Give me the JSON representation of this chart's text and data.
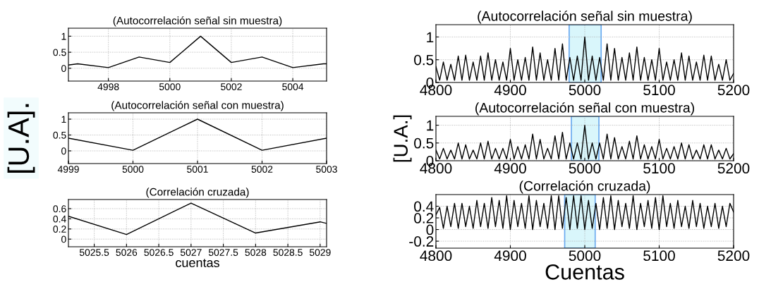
{
  "chart_data": [
    {
      "type": "line",
      "title": "(Autocorrelación señal sin muestra)",
      "x": [
        4996.7,
        4997,
        4998,
        4999,
        5000,
        5001,
        5002,
        5003,
        5004,
        5005,
        5005.1
      ],
      "series": [
        {
          "color": "#000000",
          "values": [
            0.1,
            0.14,
            0.02,
            0.35,
            0.18,
            1.0,
            0.18,
            0.35,
            0.02,
            0.14,
            0.14
          ]
        }
      ],
      "xlim": [
        4996.7,
        5005.1
      ],
      "xticks": [
        4998,
        5000,
        5002,
        5004
      ],
      "ylim": [
        -0.4,
        1.25
      ],
      "yticks": [
        0,
        0.5,
        1
      ],
      "grid": true
    },
    {
      "type": "line",
      "title": "(Autocorrelación señal sin muestra)",
      "x": [
        4800,
        4805,
        4810,
        4815,
        4820,
        4825,
        4830,
        4835,
        4840,
        4845,
        4850,
        4855,
        4860,
        4865,
        4870,
        4875,
        4880,
        4885,
        4890,
        4895,
        4900,
        4905,
        4910,
        4915,
        4920,
        4925,
        4930,
        4935,
        4940,
        4945,
        4950,
        4955,
        4960,
        4965,
        4970,
        4975,
        4980,
        4985,
        4990,
        4995,
        5000,
        5005,
        5010,
        5015,
        5020,
        5025,
        5030,
        5035,
        5040,
        5045,
        5050,
        5055,
        5060,
        5065,
        5070,
        5075,
        5080,
        5085,
        5090,
        5095,
        5100,
        5105,
        5110,
        5115,
        5120,
        5125,
        5130,
        5135,
        5140,
        5145,
        5150,
        5155,
        5160,
        5165,
        5170,
        5175,
        5180,
        5185,
        5190,
        5195,
        5200
      ],
      "series": [
        {
          "color": "#000000",
          "values": [
            0.35,
            0.05,
            0.45,
            0.05,
            0.4,
            0.05,
            0.58,
            0.05,
            0.6,
            0.05,
            0.45,
            0.05,
            0.58,
            0.05,
            0.65,
            0.05,
            0.5,
            0.05,
            0.45,
            0.05,
            0.75,
            0.05,
            0.5,
            0.05,
            0.55,
            0.05,
            0.78,
            0.05,
            0.65,
            0.05,
            0.5,
            0.05,
            0.75,
            0.05,
            0.85,
            0.05,
            0.55,
            0.05,
            0.58,
            0.05,
            1.0,
            0.05,
            0.58,
            0.05,
            0.55,
            0.05,
            0.85,
            0.05,
            0.75,
            0.05,
            0.55,
            0.05,
            0.65,
            0.05,
            0.78,
            0.05,
            0.55,
            0.05,
            0.5,
            0.05,
            0.75,
            0.05,
            0.45,
            0.05,
            0.5,
            0.05,
            0.65,
            0.05,
            0.58,
            0.05,
            0.45,
            0.05,
            0.6,
            0.05,
            0.58,
            0.05,
            0.4,
            0.05,
            0.5,
            0.05,
            0.2
          ]
        }
      ],
      "xlim": [
        4800,
        5200
      ],
      "xticks": [
        4800,
        4900,
        5000,
        5100,
        5200
      ],
      "ylim": [
        0,
        1.27
      ],
      "yticks": [
        0,
        0.5,
        1
      ],
      "grid": true,
      "bands": [
        {
          "axis": "x",
          "from": 4979,
          "to": 5022,
          "color": "#d9f6fb"
        }
      ]
    },
    {
      "type": "line",
      "title": "(Autocorrelación señal con muestra)",
      "ylabel": "[U.A].",
      "x": [
        4999,
        5000,
        5001,
        5002,
        5003
      ],
      "series": [
        {
          "color": "#000000",
          "values": [
            0.4,
            0.02,
            1.0,
            0.02,
            0.4
          ]
        }
      ],
      "xlim": [
        4999,
        5003
      ],
      "xticks": [
        4999,
        5000,
        5001,
        5002,
        5003
      ],
      "ylim": [
        -0.4,
        1.2
      ],
      "yticks": [
        0,
        0.5,
        1
      ],
      "grid": true
    },
    {
      "type": "line",
      "title": "(Autocorrelación señal con muestra)",
      "ylabel": "[U.A.]",
      "x": [
        4800,
        4805,
        4810,
        4815,
        4820,
        4825,
        4830,
        4835,
        4840,
        4845,
        4850,
        4855,
        4860,
        4865,
        4870,
        4875,
        4880,
        4885,
        4890,
        4895,
        4900,
        4905,
        4910,
        4915,
        4920,
        4925,
        4930,
        4935,
        4940,
        4945,
        4950,
        4955,
        4960,
        4965,
        4970,
        4975,
        4980,
        4985,
        4990,
        4995,
        5000,
        5005,
        5010,
        5015,
        5020,
        5025,
        5030,
        5035,
        5040,
        5045,
        5050,
        5055,
        5060,
        5065,
        5070,
        5075,
        5080,
        5085,
        5090,
        5095,
        5100,
        5105,
        5110,
        5115,
        5120,
        5125,
        5130,
        5135,
        5140,
        5145,
        5150,
        5155,
        5160,
        5165,
        5170,
        5175,
        5180,
        5185,
        5190,
        5195,
        5200
      ],
      "series": [
        {
          "color": "#000000",
          "values": [
            0.3,
            0.05,
            0.35,
            0.05,
            0.3,
            0.05,
            0.5,
            0.05,
            0.45,
            0.05,
            0.3,
            0.05,
            0.5,
            0.05,
            0.55,
            0.05,
            0.35,
            0.05,
            0.35,
            0.05,
            0.6,
            0.05,
            0.4,
            0.05,
            0.45,
            0.05,
            0.75,
            0.05,
            0.6,
            0.05,
            0.35,
            0.05,
            0.7,
            0.05,
            0.8,
            0.05,
            0.5,
            0.05,
            0.5,
            0.05,
            1.0,
            0.05,
            0.5,
            0.05,
            0.5,
            0.05,
            0.75,
            0.05,
            0.65,
            0.05,
            0.4,
            0.05,
            0.55,
            0.05,
            0.7,
            0.05,
            0.45,
            0.05,
            0.4,
            0.05,
            0.6,
            0.05,
            0.35,
            0.05,
            0.4,
            0.05,
            0.5,
            0.05,
            0.45,
            0.05,
            0.3,
            0.05,
            0.45,
            0.05,
            0.45,
            0.05,
            0.3,
            0.05,
            0.35,
            0.05,
            0.2
          ]
        }
      ],
      "xlim": [
        4800,
        5200
      ],
      "xticks": [
        4800,
        4900,
        5000,
        5100,
        5200
      ],
      "ylim": [
        0,
        1.25
      ],
      "yticks": [
        0,
        0.5,
        1
      ],
      "grid": true,
      "bands": [
        {
          "axis": "x",
          "from": 4982,
          "to": 5019,
          "color": "#d9f6fb"
        }
      ]
    },
    {
      "type": "line",
      "title": "(Correlación cruzada)",
      "xlabel": "cuentas",
      "x": [
        5025.1,
        5026,
        5027,
        5028,
        5029,
        5029.1
      ],
      "series": [
        {
          "color": "#000000",
          "values": [
            0.45,
            0.09,
            0.71,
            0.12,
            0.34,
            0.31
          ]
        }
      ],
      "xlim": [
        5025.1,
        5029.1
      ],
      "xticks": [
        5025.5,
        5026,
        5026.5,
        5027,
        5027.5,
        5028,
        5028.5,
        5029
      ],
      "ylim": [
        -0.15,
        0.78
      ],
      "yticks": [
        0,
        0.2,
        0.4,
        0.6
      ],
      "grid": true
    },
    {
      "type": "line",
      "title": "(Correlación cruzada)",
      "xlabel": "Cuentas",
      "x": [
        4800,
        4805,
        4810,
        4815,
        4820,
        4825,
        4830,
        4835,
        4840,
        4845,
        4850,
        4855,
        4860,
        4865,
        4870,
        4875,
        4880,
        4885,
        4890,
        4895,
        4900,
        4905,
        4910,
        4915,
        4920,
        4925,
        4930,
        4935,
        4940,
        4945,
        4950,
        4955,
        4960,
        4965,
        4970,
        4975,
        4980,
        4985,
        4990,
        4995,
        5000,
        5005,
        5010,
        5015,
        5020,
        5025,
        5030,
        5035,
        5040,
        5045,
        5050,
        5055,
        5060,
        5065,
        5070,
        5075,
        5080,
        5085,
        5090,
        5095,
        5100,
        5105,
        5110,
        5115,
        5120,
        5125,
        5130,
        5135,
        5140,
        5145,
        5150,
        5155,
        5160,
        5165,
        5170,
        5175,
        5180,
        5185,
        5190,
        5195,
        5200
      ],
      "series": [
        {
          "color": "#000000",
          "values": [
            0.25,
            0.38,
            0.02,
            0.4,
            0.05,
            0.45,
            0.02,
            0.45,
            0.05,
            0.4,
            0.02,
            0.5,
            0.05,
            0.45,
            0.02,
            0.55,
            0.05,
            0.5,
            0.02,
            0.58,
            0.0,
            0.5,
            0.05,
            0.45,
            0.02,
            0.58,
            0.0,
            0.5,
            0.05,
            0.45,
            0.02,
            0.58,
            0.0,
            0.58,
            0.02,
            0.55,
            0.0,
            0.58,
            0.02,
            0.58,
            0.0,
            0.5,
            0.02,
            0.45,
            0.0,
            0.55,
            0.02,
            0.58,
            0.0,
            0.5,
            0.05,
            0.45,
            0.02,
            0.58,
            0.0,
            0.45,
            0.05,
            0.5,
            0.02,
            0.55,
            0.0,
            0.58,
            0.05,
            0.45,
            0.02,
            0.5,
            0.05,
            0.4,
            0.02,
            0.5,
            0.05,
            0.45,
            0.02,
            0.4,
            0.05,
            0.45,
            0.02,
            0.4,
            0.05,
            0.45,
            0.3
          ]
        }
      ],
      "xlim": [
        4800,
        5200
      ],
      "xticks": [
        4800,
        4900,
        5000,
        5100,
        5200
      ],
      "ylim": [
        -0.32,
        0.6
      ],
      "yticks": [
        -0.2,
        0,
        0.2,
        0.4
      ],
      "grid": true,
      "bands": [
        {
          "axis": "x",
          "from": 4973,
          "to": 5014,
          "color": "#d9f6fb"
        }
      ]
    }
  ]
}
